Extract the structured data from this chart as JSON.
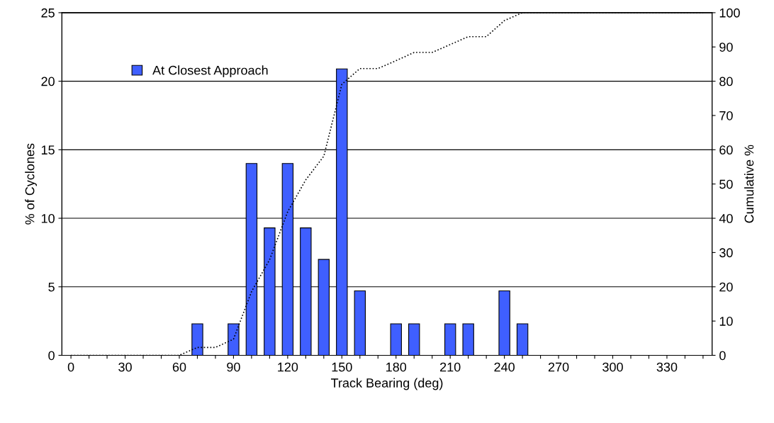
{
  "chart_data": {
    "type": "bar",
    "xlabel": "Track Bearing (deg)",
    "ylabel": "% of Cyclones",
    "y2label": "Cumulative %",
    "categories": [
      "0",
      null,
      null,
      "30",
      null,
      null,
      "60",
      null,
      null,
      "90",
      null,
      null,
      "120",
      null,
      null,
      "150",
      null,
      null,
      "180",
      null,
      null,
      "210",
      null,
      null,
      "240",
      null,
      null,
      "270",
      null,
      null,
      "300",
      null,
      null,
      "330",
      null,
      null
    ],
    "series": [
      {
        "name": "At Closest Approach",
        "color": "#3f5fff",
        "values": [
          null,
          null,
          null,
          null,
          null,
          null,
          null,
          2.3,
          null,
          2.3,
          14,
          9.3,
          14,
          9.3,
          7,
          20.9,
          4.7,
          null,
          2.3,
          2.3,
          null,
          2.3,
          2.3,
          null,
          4.7,
          2.3,
          null,
          null,
          null,
          null,
          null,
          null,
          null,
          null,
          null,
          null
        ]
      },
      {
        "type": "line",
        "axis": "y2",
        "color": "#000000",
        "line_style": "dotted",
        "marker": "none",
        "values": [
          0,
          0,
          0,
          0,
          0,
          0,
          0,
          2.3,
          2.3,
          4.7,
          18.6,
          27.9,
          41.9,
          51.2,
          58.1,
          79.1,
          83.7,
          83.7,
          86,
          88.4,
          88.4,
          90.7,
          93,
          93,
          97.7,
          100,
          100,
          100,
          100,
          100,
          100,
          100,
          100,
          100,
          100,
          100
        ]
      }
    ],
    "ylim": [
      0,
      25
    ],
    "yticks": [
      0,
      5,
      10,
      15,
      20,
      25
    ],
    "y2lim": [
      0,
      100
    ],
    "y2ticks": [
      0,
      10,
      20,
      30,
      40,
      50,
      60,
      70,
      80,
      90,
      100
    ],
    "grid": "y",
    "legend": "top left"
  }
}
